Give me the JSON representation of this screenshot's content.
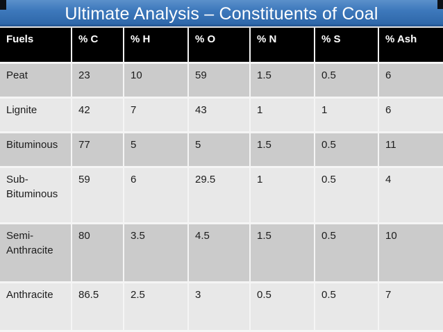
{
  "slide": {
    "title": "Ultimate Analysis – Constituents of Coal"
  },
  "table": {
    "headers": [
      "Fuels",
      "% C",
      "% H",
      "% O",
      "% N",
      "% S",
      "% Ash"
    ],
    "rows": [
      {
        "fuel": "Peat",
        "values": [
          "23",
          "10",
          "59",
          "1.5",
          "0.5",
          "6"
        ]
      },
      {
        "fuel": "Lignite",
        "values": [
          "42",
          "7",
          "43",
          "1",
          "1",
          "6"
        ]
      },
      {
        "fuel": "Bituminous",
        "values": [
          "77",
          "5",
          "5",
          "1.5",
          "0.5",
          "11"
        ]
      },
      {
        "fuel": "Sub-Bituminous",
        "values": [
          "59",
          "6",
          "29.5",
          "1",
          "0.5",
          "4"
        ]
      },
      {
        "fuel": "Semi-Anthracite",
        "values": [
          "80",
          "3.5",
          "4.5",
          "1.5",
          "0.5",
          "10"
        ]
      },
      {
        "fuel": "Anthracite",
        "values": [
          "86.5",
          "2.5",
          "3",
          "0.5",
          "0.5",
          "7"
        ]
      }
    ]
  },
  "colors": {
    "title_gradient_top": "#5b90cb",
    "title_gradient_bottom": "#2f68aa",
    "title_text": "#ffffff",
    "header_background": "#000000",
    "header_text": "#ffffff",
    "band_dark": "#cbcbcb",
    "band_light": "#e8e8e8",
    "gap_color": "#f5f5f5",
    "body_text": "#1c1c1c"
  }
}
